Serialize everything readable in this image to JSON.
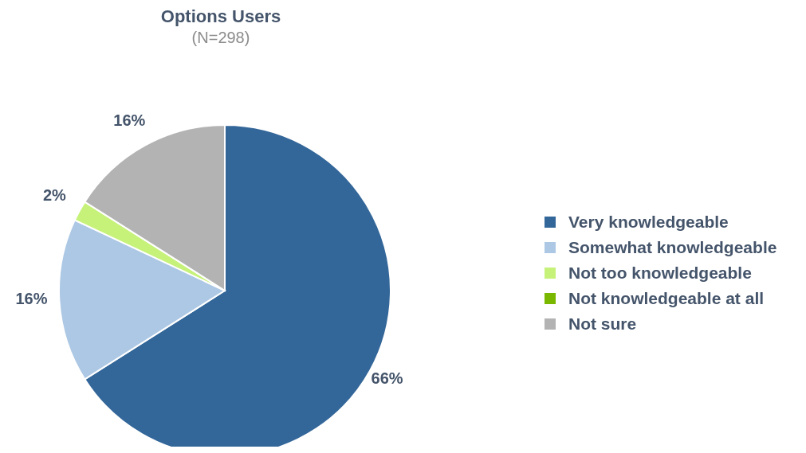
{
  "chart_data": {
    "type": "pie",
    "title": "Options Users",
    "subtitle": "(N=298)",
    "categories": [
      "Very knowledgeable",
      "Somewhat knowledgeable",
      "Not too knowledgeable",
      "Not knowledgeable at all",
      "Not sure"
    ],
    "values": [
      66,
      16,
      2,
      0,
      16
    ],
    "colors": [
      "#336699",
      "#adc8e4",
      "#c6f27a",
      "#7ab800",
      "#b3b3b3"
    ],
    "value_labels": [
      "66%",
      "16%",
      "2%",
      null,
      "16%"
    ],
    "legend": "right"
  }
}
